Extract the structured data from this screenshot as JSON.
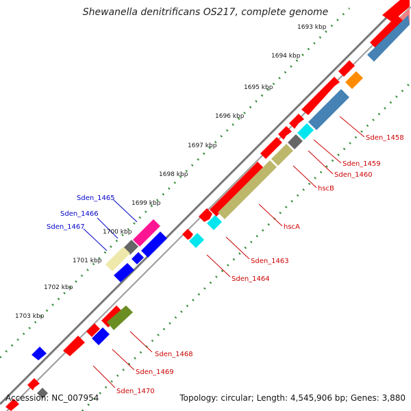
{
  "title": "Shewanella denitrificans OS217, complete genome",
  "accession": "Accession: NC_007954",
  "stats": "Topology: circular; Length: 4,545,906 bp; Genes: 3,880",
  "colors": {
    "backbone": "#777777",
    "tick_green": "#2e8b2e",
    "label_red": "#cc0000",
    "label_blue": "#0000cc"
  },
  "ticks": [
    "1693 kbp",
    "1694 kbp",
    "1695 kbp",
    "1696 kbp",
    "1697 kbp",
    "1698 kbp",
    "1699 kbp",
    "1700 kbp",
    "1701 kbp",
    "1702 kbp",
    "1703 kbp"
  ],
  "labels": [
    {
      "text": "Sden_1458",
      "color": "red"
    },
    {
      "text": "Sden_1459",
      "color": "red"
    },
    {
      "text": "Sden_1460",
      "color": "red"
    },
    {
      "text": "hscB",
      "color": "red"
    },
    {
      "text": "hscA",
      "color": "red"
    },
    {
      "text": "Sden_1463",
      "color": "red"
    },
    {
      "text": "Sden_1464",
      "color": "red"
    },
    {
      "text": "Sden_1465",
      "color": "blue"
    },
    {
      "text": "Sden_1466",
      "color": "blue"
    },
    {
      "text": "Sden_1467",
      "color": "blue"
    },
    {
      "text": "Sden_1468",
      "color": "red"
    },
    {
      "text": "Sden_1469",
      "color": "red"
    },
    {
      "text": "Sden_1470",
      "color": "red"
    }
  ],
  "features": [
    {
      "track": "outer-red",
      "color": "#ff0000"
    },
    {
      "track": "inner-blue",
      "color": "#0000ff"
    },
    {
      "track": "cog-steelblue",
      "color": "#4682b4"
    },
    {
      "track": "cog-orange",
      "color": "#ff8c00"
    },
    {
      "track": "cog-cyan",
      "color": "#00e5ee"
    },
    {
      "track": "cog-gray",
      "color": "#666666"
    },
    {
      "track": "cog-khaki",
      "color": "#bdb76b"
    },
    {
      "track": "cog-pink",
      "color": "#ff1493"
    },
    {
      "track": "cog-palekhaki",
      "color": "#eee8aa"
    },
    {
      "track": "cog-olive",
      "color": "#6b8e23"
    },
    {
      "track": "cog-salmon",
      "color": "#f08080"
    }
  ]
}
